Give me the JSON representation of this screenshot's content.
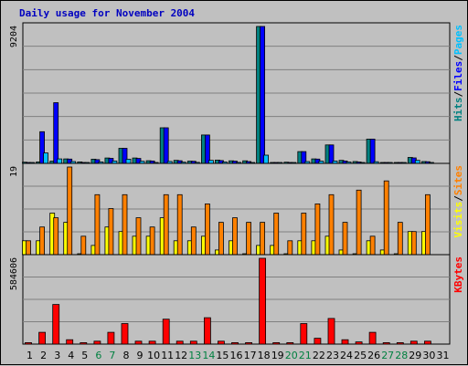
{
  "chart_data": {
    "type": "bar",
    "title": "Daily usage for November 2004",
    "categories": [
      "1",
      "2",
      "3",
      "4",
      "5",
      "6",
      "7",
      "8",
      "9",
      "10",
      "11",
      "12",
      "13",
      "14",
      "15",
      "16",
      "17",
      "18",
      "19",
      "20",
      "21",
      "22",
      "23",
      "24",
      "25",
      "26",
      "27",
      "28",
      "29",
      "30",
      "31"
    ],
    "weekend_days": [
      "6",
      "7",
      "13",
      "14",
      "20",
      "21",
      "27",
      "28"
    ],
    "panels": [
      {
        "name": "top",
        "max_label": "9204",
        "ymax": 9204,
        "legend": [
          {
            "text": "Hits",
            "color": "#008080"
          },
          {
            "text": "Files",
            "color": "#0000ff"
          },
          {
            "text": "Pages",
            "color": "#00c0ff"
          }
        ],
        "series": [
          {
            "name": "Hits",
            "color": "#008080",
            "values": [
              80,
              100,
              150,
              300,
              100,
              280,
              360,
              1010,
              360,
              180,
              2390,
              200,
              150,
              1910,
              220,
              170,
              170,
              9204,
              60,
              80,
              790,
              300,
              1240,
              200,
              120,
              1630,
              60,
              50,
              400,
              120,
              null
            ]
          },
          {
            "name": "Files",
            "color": "#0000ff",
            "values": [
              50,
              2130,
              4080,
              290,
              60,
              250,
              340,
              1010,
              330,
              160,
              2390,
              180,
              140,
              1910,
              190,
              150,
              120,
              9204,
              50,
              60,
              790,
              290,
              1240,
              160,
              90,
              1630,
              50,
              40,
              370,
              110,
              null
            ]
          },
          {
            "name": "Pages",
            "color": "#00c0ff",
            "values": [
              40,
              700,
              300,
              120,
              30,
              100,
              160,
              280,
              140,
              60,
              130,
              80,
              70,
              200,
              90,
              70,
              50,
              550,
              30,
              40,
              120,
              150,
              160,
              90,
              60,
              110,
              30,
              30,
              200,
              60,
              null
            ]
          }
        ]
      },
      {
        "name": "middle",
        "max_label": "19",
        "ymax": 19,
        "legend": [
          {
            "text": "Visits",
            "color": "#ffff00"
          },
          {
            "text": "Sites",
            "color": "#ff8000"
          }
        ],
        "series": [
          {
            "name": "Visits",
            "color": "#ffff00",
            "values": [
              3,
              3,
              9,
              7,
              0,
              2,
              6,
              5,
              4,
              4,
              8,
              3,
              3,
              4,
              1,
              3,
              0,
              2,
              2,
              0,
              3,
              3,
              4,
              1,
              0,
              3,
              1,
              0,
              5,
              5,
              null
            ]
          },
          {
            "name": "Sites",
            "color": "#ff8000",
            "values": [
              3,
              6,
              8,
              19,
              4,
              13,
              10,
              13,
              8,
              6,
              13,
              13,
              6,
              11,
              7,
              8,
              7,
              7,
              9,
              3,
              9,
              11,
              13,
              7,
              14,
              4,
              16,
              7,
              5,
              13,
              null
            ]
          }
        ]
      },
      {
        "name": "bottom",
        "max_label": "584606",
        "ymax": 584606,
        "legend": [
          {
            "text": "KBytes",
            "color": "#ff0000"
          }
        ],
        "series": [
          {
            "name": "KBytes",
            "color": "#ff0000",
            "values": [
              10000,
              80000,
              270000,
              30000,
              10000,
              20000,
              80000,
              140000,
              20000,
              20000,
              170000,
              20000,
              20000,
              180000,
              20000,
              10000,
              10000,
              584606,
              10000,
              10000,
              140000,
              40000,
              175000,
              30000,
              15000,
              80000,
              10000,
              10000,
              20000,
              20000,
              null
            ]
          }
        ]
      }
    ]
  }
}
